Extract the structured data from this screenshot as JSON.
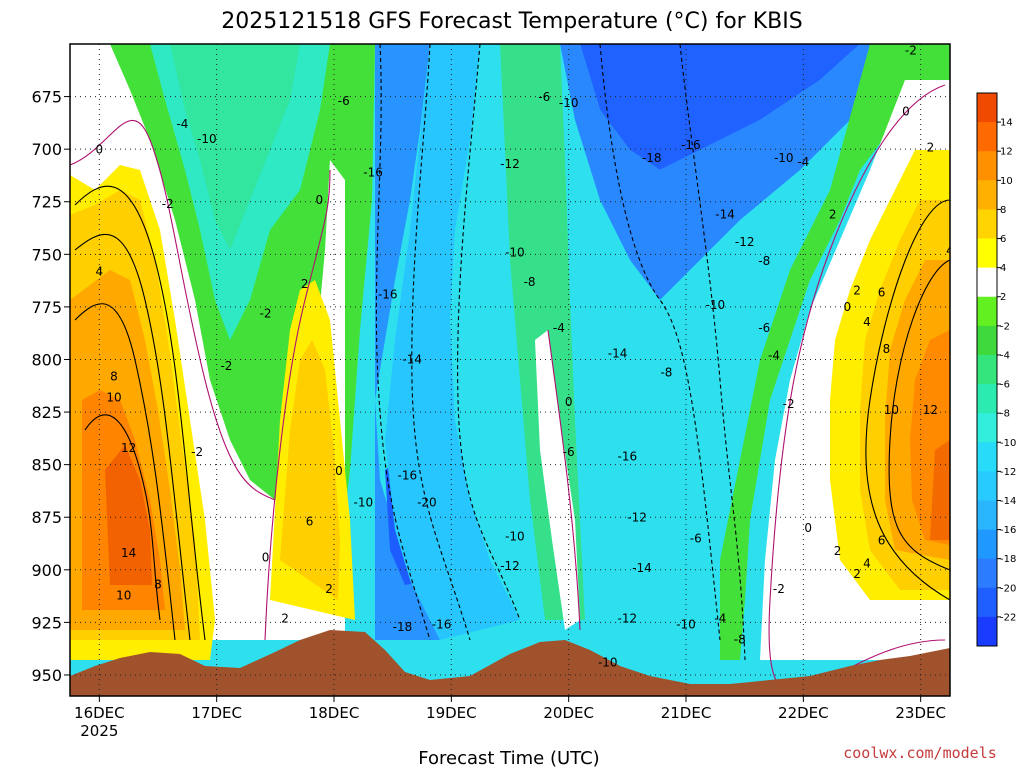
{
  "title": "2025121518 GFS Forecast Temperature (°C) for KBIS",
  "x_axis_label": "Forecast Time (UTC)",
  "credit": "coolwx.com/models",
  "chart_data": {
    "type": "heatmap",
    "title": "2025121518 GFS Forecast Temperature (°C) for KBIS",
    "xlabel": "Forecast Time (UTC)",
    "ylabel": "",
    "y_axis_unit": "hPa",
    "y_ticks": [
      675,
      700,
      725,
      750,
      775,
      800,
      825,
      850,
      875,
      900,
      925,
      950
    ],
    "ylim": [
      650,
      960
    ],
    "x_tick_labels": [
      "16DEC",
      "17DEC",
      "18DEC",
      "19DEC",
      "20DEC",
      "21DEC",
      "22DEC",
      "23DEC"
    ],
    "x_first_tick_sublabel": "2025",
    "x_ticks_hours_from_start": [
      0,
      24,
      48,
      72,
      96,
      120,
      144,
      168
    ],
    "xlim_hours": [
      -6,
      174
    ],
    "grid": true,
    "colorbar": {
      "levels": [
        -22,
        -20,
        -18,
        -16,
        -14,
        -12,
        -10,
        -8,
        -6,
        -4,
        -2,
        2,
        4,
        6,
        8,
        10,
        12,
        14
      ],
      "colors": [
        "#1a3cff",
        "#1f5fff",
        "#2b7cff",
        "#1f99ff",
        "#2ab6ff",
        "#27cbff",
        "#27dcf8",
        "#31eedd",
        "#2cebb0",
        "#33e57a",
        "#40d93d",
        "#63f020",
        "#ffffff",
        "#ffff00",
        "#ffd400",
        "#ffb000",
        "#ff9000",
        "#ff6a00",
        "#f04a00"
      ]
    },
    "contour_labels": [
      {
        "t": 0,
        "p": 702,
        "v": 0
      },
      {
        "t": 3,
        "p": 810,
        "v": 8
      },
      {
        "t": 3,
        "p": 820,
        "v": 10
      },
      {
        "t": 6,
        "p": 844,
        "v": 12
      },
      {
        "t": 6,
        "p": 894,
        "v": 14
      },
      {
        "t": 5,
        "p": 914,
        "v": 10
      },
      {
        "t": 12,
        "p": 909,
        "v": 8
      },
      {
        "t": 0,
        "p": 760,
        "v": 4
      },
      {
        "t": 14,
        "p": 728,
        "v": -2
      },
      {
        "t": 17,
        "p": 690,
        "v": -4
      },
      {
        "t": 22,
        "p": 697,
        "v": -10
      },
      {
        "t": 26,
        "p": 805,
        "v": -2
      },
      {
        "t": 20,
        "p": 846,
        "v": -2
      },
      {
        "t": 34,
        "p": 780,
        "v": -2
      },
      {
        "t": 45,
        "p": 726,
        "v": 0
      },
      {
        "t": 42,
        "p": 766,
        "v": 2
      },
      {
        "t": 43,
        "p": 879,
        "v": 6
      },
      {
        "t": 49,
        "p": 855,
        "v": 0
      },
      {
        "t": 47,
        "p": 911,
        "v": 2
      },
      {
        "t": 34,
        "p": 896,
        "v": 0
      },
      {
        "t": 38,
        "p": 925,
        "v": 2
      },
      {
        "t": 50,
        "p": 679,
        "v": -6
      },
      {
        "t": 56,
        "p": 713,
        "v": -16
      },
      {
        "t": 59,
        "p": 771,
        "v": -16
      },
      {
        "t": 64,
        "p": 802,
        "v": -14
      },
      {
        "t": 54,
        "p": 870,
        "v": -10
      },
      {
        "t": 63,
        "p": 857,
        "v": -16
      },
      {
        "t": 67,
        "p": 870,
        "v": -20
      },
      {
        "t": 62,
        "p": 929,
        "v": -18
      },
      {
        "t": 70,
        "p": 928,
        "v": -16
      },
      {
        "t": 84,
        "p": 709,
        "v": -12
      },
      {
        "t": 91,
        "p": 677,
        "v": -6
      },
      {
        "t": 96,
        "p": 680,
        "v": -10
      },
      {
        "t": 85,
        "p": 751,
        "v": -10
      },
      {
        "t": 88,
        "p": 765,
        "v": -8
      },
      {
        "t": 94,
        "p": 787,
        "v": -4
      },
      {
        "t": 85,
        "p": 886,
        "v": -10
      },
      {
        "t": 84,
        "p": 900,
        "v": -12
      },
      {
        "t": 96,
        "p": 822,
        "v": 0
      },
      {
        "t": 96,
        "p": 846,
        "v": -6
      },
      {
        "t": 113,
        "p": 706,
        "v": -18
      },
      {
        "t": 121,
        "p": 700,
        "v": -16
      },
      {
        "t": 128,
        "p": 733,
        "v": -14
      },
      {
        "t": 132,
        "p": 746,
        "v": -12
      },
      {
        "t": 136,
        "p": 755,
        "v": -8
      },
      {
        "t": 140,
        "p": 706,
        "v": -10
      },
      {
        "t": 144,
        "p": 708,
        "v": -4
      },
      {
        "t": 106,
        "p": 799,
        "v": -14
      },
      {
        "t": 116,
        "p": 808,
        "v": -8
      },
      {
        "t": 126,
        "p": 776,
        "v": -10
      },
      {
        "t": 136,
        "p": 787,
        "v": -6
      },
      {
        "t": 138,
        "p": 800,
        "v": -4
      },
      {
        "t": 141,
        "p": 823,
        "v": -2
      },
      {
        "t": 108,
        "p": 848,
        "v": -16
      },
      {
        "t": 110,
        "p": 877,
        "v": -12
      },
      {
        "t": 122,
        "p": 887,
        "v": -6
      },
      {
        "t": 111,
        "p": 901,
        "v": -14
      },
      {
        "t": 108,
        "p": 925,
        "v": -12
      },
      {
        "t": 120,
        "p": 928,
        "v": -10
      },
      {
        "t": 127,
        "p": 925,
        "v": -4
      },
      {
        "t": 131,
        "p": 935,
        "v": -8
      },
      {
        "t": 139,
        "p": 911,
        "v": -2
      },
      {
        "t": 104,
        "p": 946,
        "v": -10
      },
      {
        "t": 150,
        "p": 733,
        "v": 2
      },
      {
        "t": 153,
        "p": 777,
        "v": 0
      },
      {
        "t": 155,
        "p": 769,
        "v": 2
      },
      {
        "t": 157,
        "p": 784,
        "v": 4
      },
      {
        "t": 160,
        "p": 770,
        "v": 6
      },
      {
        "t": 161,
        "p": 797,
        "v": 8
      },
      {
        "t": 162,
        "p": 826,
        "v": 10
      },
      {
        "t": 170,
        "p": 826,
        "v": 12
      },
      {
        "t": 160,
        "p": 888,
        "v": 6
      },
      {
        "t": 157,
        "p": 899,
        "v": 4
      },
      {
        "t": 151,
        "p": 893,
        "v": 2
      },
      {
        "t": 155,
        "p": 904,
        "v": 2
      },
      {
        "t": 145,
        "p": 882,
        "v": 0
      },
      {
        "t": 165,
        "p": 684,
        "v": 0
      },
      {
        "t": 166,
        "p": 655,
        "v": -2
      },
      {
        "t": 170,
        "p": 701,
        "v": 2
      },
      {
        "t": 174,
        "p": 750,
        "v": 4
      }
    ]
  }
}
